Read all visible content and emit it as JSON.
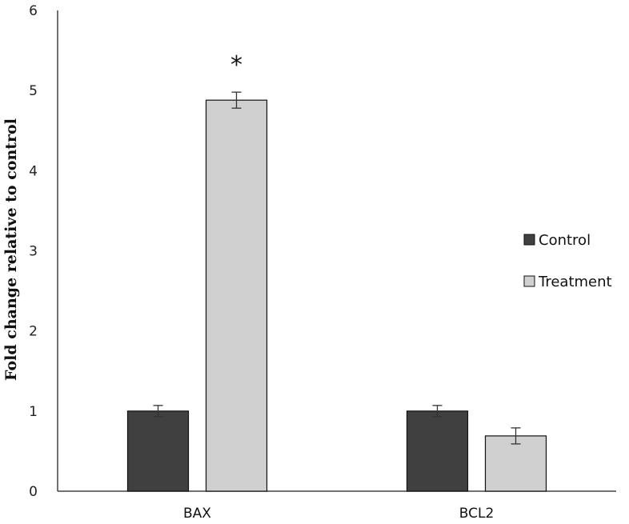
{
  "chart_data": {
    "type": "bar",
    "title": "",
    "xlabel": "",
    "ylabel": "Fold change relative to control",
    "ylim": [
      0,
      6
    ],
    "yticks": [
      "0",
      "1",
      "2",
      "3",
      "4",
      "5",
      "6"
    ],
    "categories": [
      "BAX",
      "BCL2"
    ],
    "series": [
      {
        "name": "Control",
        "color": "#404040",
        "values": [
          1.0,
          1.0
        ],
        "errors": [
          0.07,
          0.07
        ]
      },
      {
        "name": "Treatment",
        "color": "#d0d0d0",
        "values": [
          4.88,
          0.69
        ],
        "errors": [
          0.1,
          0.1
        ]
      }
    ],
    "annotations": [
      {
        "category": "BAX",
        "series": "Treatment",
        "text": "*"
      }
    ],
    "grid": false,
    "legend_position": "right"
  }
}
